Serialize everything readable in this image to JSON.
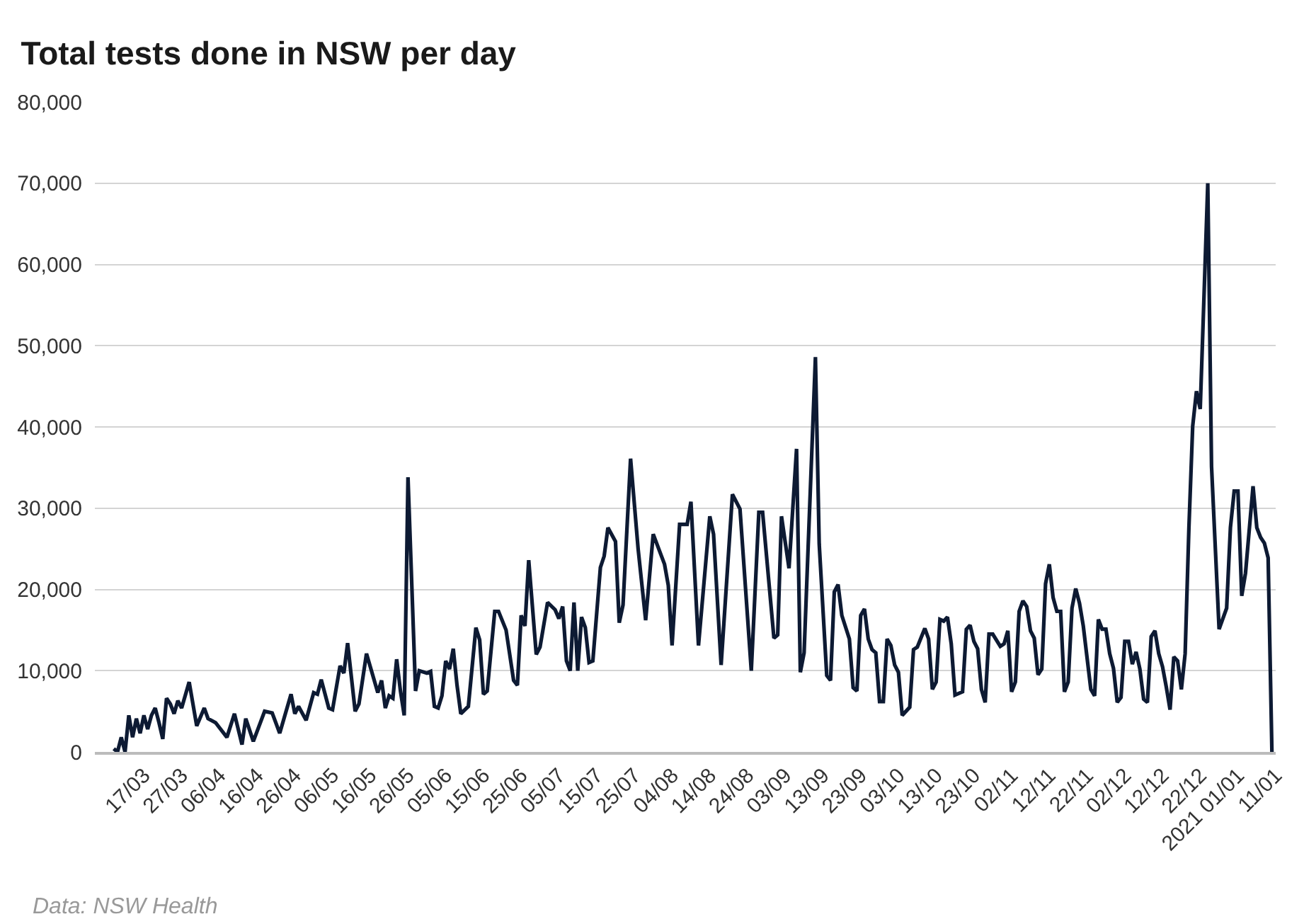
{
  "chart_data": {
    "type": "line",
    "title": "Total tests done in NSW per day",
    "annotations": [
      "Data: NSW Health"
    ],
    "x": [
      "2020-03-09",
      "2020-03-10",
      "2020-03-11",
      "2020-03-12",
      "2020-03-13",
      "2020-03-14",
      "2020-03-15",
      "2020-03-16",
      "2020-03-17",
      "2020-03-18",
      "2020-03-19",
      "2020-03-20",
      "2020-03-21",
      "2020-03-22",
      "2020-03-23",
      "2020-03-24",
      "2020-03-25",
      "2020-03-26",
      "2020-03-27",
      "2020-03-29",
      "2020-03-31",
      "2020-04-02",
      "2020-04-03",
      "2020-04-05",
      "2020-04-08",
      "2020-04-10",
      "2020-04-12",
      "2020-04-13",
      "2020-04-15",
      "2020-04-18",
      "2020-04-20",
      "2020-04-22",
      "2020-04-25",
      "2020-04-26",
      "2020-04-27",
      "2020-04-29",
      "2020-05-01",
      "2020-05-02",
      "2020-05-03",
      "2020-05-05",
      "2020-05-06",
      "2020-05-08",
      "2020-05-09",
      "2020-05-10",
      "2020-05-12",
      "2020-05-13",
      "2020-05-15",
      "2020-05-18",
      "2020-05-19",
      "2020-05-20",
      "2020-05-21",
      "2020-05-22",
      "2020-05-23",
      "2020-05-24",
      "2020-05-25",
      "2020-05-26",
      "2020-05-28",
      "2020-05-29",
      "2020-05-31",
      "2020-06-01",
      "2020-06-02",
      "2020-06-03",
      "2020-06-04",
      "2020-06-05",
      "2020-06-06",
      "2020-06-07",
      "2020-06-08",
      "2020-06-09",
      "2020-06-11",
      "2020-06-13",
      "2020-06-14",
      "2020-06-15",
      "2020-06-16",
      "2020-06-18",
      "2020-06-19",
      "2020-06-21",
      "2020-06-23",
      "2020-06-24",
      "2020-06-25",
      "2020-06-26",
      "2020-06-27",
      "2020-06-29",
      "2020-06-30",
      "2020-07-02",
      "2020-07-04",
      "2020-07-05",
      "2020-07-06",
      "2020-07-07",
      "2020-07-08",
      "2020-07-09",
      "2020-07-10",
      "2020-07-11",
      "2020-07-12",
      "2020-07-13",
      "2020-07-14",
      "2020-07-16",
      "2020-07-17",
      "2020-07-18",
      "2020-07-20",
      "2020-07-21",
      "2020-07-22",
      "2020-07-24",
      "2020-07-26",
      "2020-07-28",
      "2020-07-30",
      "2020-08-02",
      "2020-08-03",
      "2020-08-04",
      "2020-08-06",
      "2020-08-08",
      "2020-08-09",
      "2020-08-11",
      "2020-08-14",
      "2020-08-15",
      "2020-08-17",
      "2020-08-20",
      "2020-08-22",
      "2020-08-25",
      "2020-08-27",
      "2020-08-28",
      "2020-08-31",
      "2020-09-01",
      "2020-09-02",
      "2020-09-04",
      "2020-09-06",
      "2020-09-07",
      "2020-09-08",
      "2020-09-09",
      "2020-09-11",
      "2020-09-12",
      "2020-09-14",
      "2020-09-15",
      "2020-09-16",
      "2020-09-17",
      "2020-09-18",
      "2020-09-20",
      "2020-09-21",
      "2020-09-22",
      "2020-09-23",
      "2020-09-24",
      "2020-09-25",
      "2020-09-26",
      "2020-09-27",
      "2020-09-28",
      "2020-09-29",
      "2020-09-30",
      "2020-10-01",
      "2020-10-02",
      "2020-10-03",
      "2020-10-04",
      "2020-10-06",
      "2020-10-07",
      "2020-10-08",
      "2020-10-10",
      "2020-10-11",
      "2020-10-12",
      "2020-10-13",
      "2020-10-14",
      "2020-10-15",
      "2020-10-16",
      "2020-10-17",
      "2020-10-18",
      "2020-10-20",
      "2020-10-21",
      "2020-10-22",
      "2020-10-23",
      "2020-10-24",
      "2020-10-25",
      "2020-10-26",
      "2020-10-27",
      "2020-10-28",
      "2020-10-30",
      "2020-10-31",
      "2020-11-01",
      "2020-11-02",
      "2020-11-03",
      "2020-11-04",
      "2020-11-05",
      "2020-11-06",
      "2020-11-07",
      "2020-11-08",
      "2020-11-09",
      "2020-11-10",
      "2020-11-11",
      "2020-11-12",
      "2020-11-13",
      "2020-11-14",
      "2020-11-15",
      "2020-11-16",
      "2020-11-17",
      "2020-11-18",
      "2020-11-19",
      "2020-11-20",
      "2020-11-21",
      "2020-11-23",
      "2020-11-24",
      "2020-11-25",
      "2020-11-26",
      "2020-11-27",
      "2020-11-28",
      "2020-11-29",
      "2020-11-30",
      "2020-12-01",
      "2020-12-02",
      "2020-12-03",
      "2020-12-04",
      "2020-12-05",
      "2020-12-06",
      "2020-12-07",
      "2020-12-08",
      "2020-12-09",
      "2020-12-10",
      "2020-12-11",
      "2020-12-12",
      "2020-12-13",
      "2020-12-14",
      "2020-12-15",
      "2020-12-16",
      "2020-12-17",
      "2020-12-18",
      "2020-12-19",
      "2020-12-20",
      "2020-12-21",
      "2020-12-22",
      "2020-12-24",
      "2020-12-25",
      "2020-12-27",
      "2020-12-29",
      "2020-12-30",
      "2020-12-31",
      "2021-01-01",
      "2021-01-02",
      "2021-01-03",
      "2021-01-05",
      "2021-01-06",
      "2021-01-07",
      "2021-01-08",
      "2021-01-09",
      "2021-01-10"
    ],
    "series": [
      {
        "color": "#0d1a33",
        "values": [
          400,
          0,
          1800,
          0,
          4500,
          1800,
          4100,
          2300,
          4500,
          2800,
          4500,
          5400,
          3600,
          1600,
          6600,
          5900,
          4700,
          6300,
          5400,
          8600,
          3200,
          5400,
          4100,
          3600,
          1800,
          4700,
          900,
          4100,
          1300,
          5000,
          4800,
          2300,
          7100,
          4700,
          5600,
          3900,
          7300,
          7100,
          8900,
          5400,
          5200,
          10600,
          9700,
          13400,
          5000,
          5900,
          12100,
          7300,
          8800,
          5400,
          6900,
          6600,
          11400,
          7500,
          4500,
          33800,
          7500,
          10000,
          9700,
          9900,
          5600,
          5400,
          6900,
          11200,
          10200,
          12700,
          8200,
          4700,
          5600,
          15300,
          13800,
          7100,
          7500,
          17300,
          17300,
          15000,
          8800,
          8200,
          16800,
          15500,
          23600,
          12000,
          12900,
          18400,
          17500,
          16400,
          17900,
          11200,
          10000,
          18400,
          10000,
          16600,
          15300,
          11000,
          11200,
          22700,
          24100,
          27600,
          25900,
          15900,
          18100,
          36100,
          25000,
          16200,
          26800,
          23100,
          20500,
          13100,
          28000,
          28000,
          30800,
          13100,
          29000,
          26800,
          10700,
          31700,
          29900,
          10000,
          29500,
          29500,
          14000,
          14400,
          29000,
          22600,
          37300,
          9800,
          12200,
          24400,
          48600,
          25600,
          9400,
          8800,
          19700,
          20600,
          16800,
          13900,
          7900,
          7500,
          16800,
          17600,
          13900,
          12600,
          12200,
          6200,
          6200,
          13900,
          13100,
          10700,
          9800,
          4500,
          5500,
          12600,
          12900,
          15200,
          13900,
          7700,
          8600,
          16300,
          16100,
          16600,
          13300,
          7000,
          7400,
          15100,
          15600,
          13600,
          12700,
          7700,
          6100,
          14500,
          14500,
          13000,
          13300,
          14900,
          7400,
          8600,
          17300,
          18600,
          17900,
          14900,
          14000,
          9500,
          10200,
          20700,
          23100,
          19000,
          17300,
          17300,
          7400,
          8600,
          17700,
          20100,
          18300,
          15500,
          7700,
          6900,
          16300,
          15100,
          15100,
          12100,
          10300,
          6100,
          6700,
          13600,
          13600,
          10800,
          12300,
          10200,
          6500,
          6100,
          14200,
          14900,
          12100,
          10500,
          8000,
          5200,
          11700,
          11200,
          7700,
          12100,
          27600,
          40100,
          44400,
          42200,
          70000,
          35100,
          15100,
          17700,
          27600,
          32100,
          32100,
          19200,
          22000,
          32700,
          27600,
          26400,
          25700,
          23900,
          0
        ]
      }
    ],
    "xlim": [
      "2020-03-04",
      "2021-01-11"
    ],
    "xticks": [
      {
        "value": "2020-03-17",
        "label": "17/03"
      },
      {
        "value": "2020-03-27",
        "label": "27/03"
      },
      {
        "value": "2020-04-06",
        "label": "06/04"
      },
      {
        "value": "2020-04-16",
        "label": "16/04"
      },
      {
        "value": "2020-04-26",
        "label": "26/04"
      },
      {
        "value": "2020-05-06",
        "label": "06/05"
      },
      {
        "value": "2020-05-16",
        "label": "16/05"
      },
      {
        "value": "2020-05-26",
        "label": "26/05"
      },
      {
        "value": "2020-06-05",
        "label": "05/06"
      },
      {
        "value": "2020-06-15",
        "label": "15/06"
      },
      {
        "value": "2020-06-25",
        "label": "25/06"
      },
      {
        "value": "2020-07-05",
        "label": "05/07"
      },
      {
        "value": "2020-07-15",
        "label": "15/07"
      },
      {
        "value": "2020-07-25",
        "label": "25/07"
      },
      {
        "value": "2020-08-04",
        "label": "04/08"
      },
      {
        "value": "2020-08-14",
        "label": "14/08"
      },
      {
        "value": "2020-08-24",
        "label": "24/08"
      },
      {
        "value": "2020-09-03",
        "label": "03/09"
      },
      {
        "value": "2020-09-13",
        "label": "13/09"
      },
      {
        "value": "2020-09-23",
        "label": "23/09"
      },
      {
        "value": "2020-10-03",
        "label": "03/10"
      },
      {
        "value": "2020-10-13",
        "label": "13/10"
      },
      {
        "value": "2020-10-23",
        "label": "23/10"
      },
      {
        "value": "2020-11-02",
        "label": "02/11"
      },
      {
        "value": "2020-11-12",
        "label": "12/11"
      },
      {
        "value": "2020-11-22",
        "label": "22/11"
      },
      {
        "value": "2020-12-02",
        "label": "02/12"
      },
      {
        "value": "2020-12-12",
        "label": "12/12"
      },
      {
        "value": "2020-12-22",
        "label": "22/12"
      },
      {
        "value": "2021-01-01",
        "label": "2021 01/01"
      },
      {
        "value": "2021-01-11",
        "label": "11/01"
      }
    ],
    "ylim": [
      0,
      80000
    ],
    "yticks": [
      {
        "value": 0,
        "label": "0"
      },
      {
        "value": 10000,
        "label": "10,000"
      },
      {
        "value": 20000,
        "label": "20,000"
      },
      {
        "value": 30000,
        "label": "30,000"
      },
      {
        "value": 40000,
        "label": "40,000"
      },
      {
        "value": 50000,
        "label": "50,000"
      },
      {
        "value": 60000,
        "label": "60,000"
      },
      {
        "value": 70000,
        "label": "70,000"
      },
      {
        "value": 80000,
        "label": "80,000"
      }
    ],
    "grid": "y",
    "marker": "none",
    "line_style": "solid"
  }
}
